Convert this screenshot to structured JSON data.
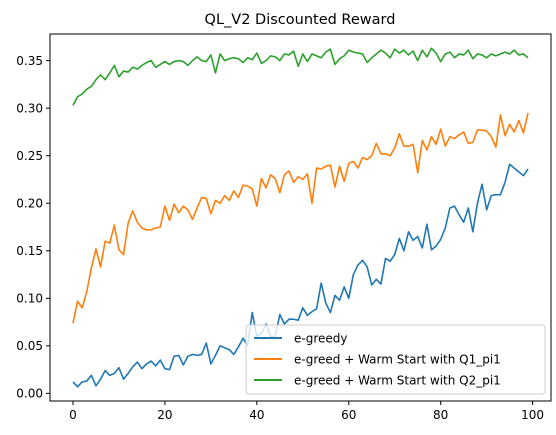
{
  "chart_data": {
    "type": "line",
    "title": "QL_V2 Discounted Reward",
    "xlabel": "",
    "ylabel": "",
    "xlim": [
      -5,
      104
    ],
    "ylim": [
      -0.008,
      0.378
    ],
    "x_ticks": [
      0,
      20,
      40,
      60,
      80,
      100
    ],
    "x_tick_labels": [
      "0",
      "20",
      "40",
      "60",
      "80",
      "100"
    ],
    "y_ticks": [
      0.0,
      0.05,
      0.1,
      0.15,
      0.2,
      0.25,
      0.3,
      0.35
    ],
    "y_tick_labels": [
      "0.00",
      "0.05",
      "0.10",
      "0.15",
      "0.20",
      "0.25",
      "0.30",
      "0.35"
    ],
    "grid": false,
    "legend_position": "lower-right",
    "series": [
      {
        "name": "e-greedy",
        "color": "#1f77b4",
        "values": [
          0.012,
          0.007,
          0.012,
          0.013,
          0.019,
          0.008,
          0.015,
          0.024,
          0.019,
          0.021,
          0.027,
          0.015,
          0.021,
          0.028,
          0.033,
          0.026,
          0.031,
          0.034,
          0.029,
          0.035,
          0.026,
          0.025,
          0.039,
          0.04,
          0.03,
          0.039,
          0.041,
          0.04,
          0.041,
          0.053,
          0.031,
          0.04,
          0.05,
          0.048,
          0.046,
          0.041,
          0.049,
          0.058,
          0.05,
          0.085,
          0.06,
          0.063,
          0.073,
          0.06,
          0.06,
          0.083,
          0.073,
          0.078,
          0.078,
          0.077,
          0.09,
          0.082,
          0.086,
          0.089,
          0.116,
          0.095,
          0.085,
          0.103,
          0.098,
          0.112,
          0.1,
          0.125,
          0.135,
          0.14,
          0.133,
          0.114,
          0.12,
          0.115,
          0.142,
          0.139,
          0.146,
          0.163,
          0.15,
          0.17,
          0.161,
          0.165,
          0.153,
          0.178,
          0.151,
          0.155,
          0.162,
          0.174,
          0.195,
          0.197,
          0.188,
          0.18,
          0.195,
          0.17,
          0.2,
          0.22,
          0.193,
          0.208,
          0.209,
          0.209,
          0.222,
          0.241,
          0.237,
          0.233,
          0.229,
          0.236
        ]
      },
      {
        "name": "e-greed + Warm Start with Q1_pi1",
        "color": "#ff7f0e",
        "values": [
          0.074,
          0.097,
          0.09,
          0.107,
          0.132,
          0.152,
          0.133,
          0.16,
          0.158,
          0.177,
          0.151,
          0.146,
          0.179,
          0.192,
          0.18,
          0.174,
          0.172,
          0.172,
          0.174,
          0.175,
          0.197,
          0.182,
          0.199,
          0.19,
          0.197,
          0.193,
          0.183,
          0.195,
          0.206,
          0.205,
          0.189,
          0.203,
          0.2,
          0.208,
          0.203,
          0.213,
          0.206,
          0.219,
          0.218,
          0.215,
          0.197,
          0.226,
          0.216,
          0.23,
          0.226,
          0.211,
          0.23,
          0.234,
          0.222,
          0.228,
          0.225,
          0.231,
          0.2,
          0.237,
          0.236,
          0.239,
          0.24,
          0.217,
          0.239,
          0.223,
          0.242,
          0.244,
          0.237,
          0.248,
          0.246,
          0.25,
          0.263,
          0.252,
          0.252,
          0.25,
          0.258,
          0.273,
          0.26,
          0.26,
          0.262,
          0.232,
          0.266,
          0.256,
          0.27,
          0.262,
          0.278,
          0.26,
          0.27,
          0.268,
          0.272,
          0.275,
          0.263,
          0.264,
          0.277,
          0.277,
          0.276,
          0.27,
          0.259,
          0.293,
          0.271,
          0.283,
          0.275,
          0.287,
          0.274,
          0.295
        ]
      },
      {
        "name": "e-greed + Warm Start with Q2_pi1",
        "color": "#2ca02c",
        "values": [
          0.303,
          0.312,
          0.315,
          0.32,
          0.323,
          0.33,
          0.335,
          0.33,
          0.337,
          0.345,
          0.333,
          0.339,
          0.338,
          0.343,
          0.341,
          0.345,
          0.348,
          0.35,
          0.343,
          0.346,
          0.349,
          0.346,
          0.349,
          0.35,
          0.349,
          0.345,
          0.35,
          0.354,
          0.35,
          0.349,
          0.356,
          0.337,
          0.357,
          0.35,
          0.352,
          0.353,
          0.352,
          0.348,
          0.353,
          0.351,
          0.358,
          0.347,
          0.35,
          0.355,
          0.354,
          0.35,
          0.357,
          0.356,
          0.36,
          0.344,
          0.357,
          0.349,
          0.357,
          0.355,
          0.353,
          0.359,
          0.362,
          0.346,
          0.352,
          0.355,
          0.361,
          0.359,
          0.358,
          0.357,
          0.348,
          0.353,
          0.357,
          0.361,
          0.358,
          0.353,
          0.362,
          0.358,
          0.361,
          0.356,
          0.36,
          0.35,
          0.361,
          0.354,
          0.363,
          0.358,
          0.349,
          0.357,
          0.359,
          0.353,
          0.357,
          0.356,
          0.361,
          0.352,
          0.357,
          0.356,
          0.353,
          0.357,
          0.355,
          0.357,
          0.359,
          0.357,
          0.361,
          0.356,
          0.357,
          0.353
        ]
      }
    ]
  }
}
